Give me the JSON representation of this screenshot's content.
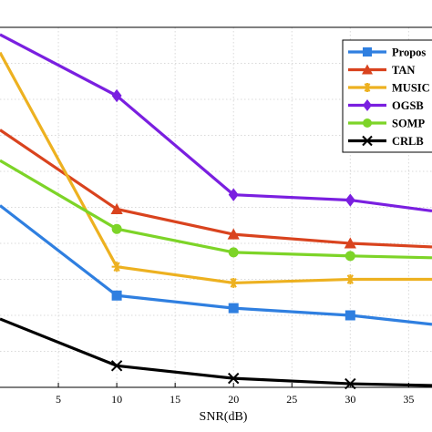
{
  "chart_data": {
    "type": "line",
    "xlabel": "SNR(dB)",
    "ylabel": "",
    "title": "",
    "xlim": [
      0,
      37
    ],
    "ylim": [
      0,
      1
    ],
    "x_ticks": [
      5,
      10,
      15,
      20,
      25,
      30,
      35
    ],
    "grid": true,
    "legend": "top-right",
    "x": [
      0,
      10,
      20,
      30,
      37
    ],
    "series": [
      {
        "name": "Propos",
        "color": "#2f7fe0",
        "marker": "square",
        "values": [
          0.505,
          0.255,
          0.22,
          0.2,
          0.175
        ]
      },
      {
        "name": "TAN",
        "color": "#d9431e",
        "marker": "triangle",
        "values": [
          0.715,
          0.495,
          0.425,
          0.4,
          0.39
        ]
      },
      {
        "name": "MUSIC",
        "color": "#edb120",
        "marker": "asterisk",
        "values": [
          0.93,
          0.335,
          0.29,
          0.3,
          0.3
        ]
      },
      {
        "name": "OGSB",
        "color": "#7a1fe0",
        "marker": "diamond",
        "values": [
          0.98,
          0.81,
          0.535,
          0.52,
          0.49
        ]
      },
      {
        "name": "SOMP",
        "color": "#7dd428",
        "marker": "circle",
        "values": [
          0.63,
          0.44,
          0.375,
          0.365,
          0.36
        ]
      },
      {
        "name": "CRLB",
        "color": "#000000",
        "marker": "x",
        "values": [
          0.19,
          0.06,
          0.025,
          0.01,
          0.005
        ]
      }
    ]
  }
}
